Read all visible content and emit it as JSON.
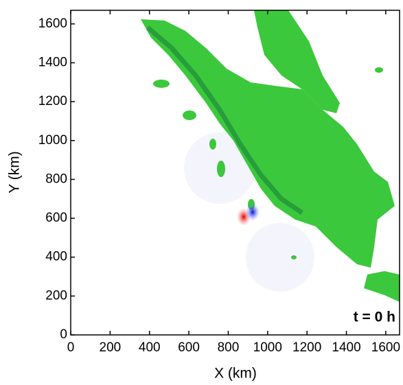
{
  "chart_data": {
    "type": "map",
    "annotation": "t = 0 h",
    "x_label": "X (km)",
    "y_label": "Y (km)",
    "xlim": [
      0,
      1670
    ],
    "ylim": [
      0,
      1670
    ],
    "xticks": [
      0,
      200,
      400,
      600,
      800,
      1000,
      1200,
      1400,
      1600
    ],
    "yticks": [
      0,
      200,
      400,
      600,
      800,
      1000,
      1200,
      1400,
      1600
    ]
  }
}
